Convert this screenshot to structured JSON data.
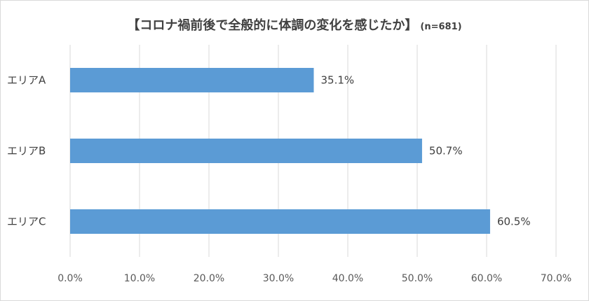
{
  "chart_data": {
    "type": "bar",
    "orientation": "horizontal",
    "title": "【コロナ禍前後で全般的に体調の変化を感じたか】",
    "subtitle": "(n=681)",
    "categories": [
      "エリアA",
      "エリアB",
      "エリアC"
    ],
    "values": [
      35.1,
      50.7,
      60.5
    ],
    "data_labels": [
      "35.1%",
      "50.7%",
      "60.5%"
    ],
    "xlim": [
      0,
      70
    ],
    "x_ticks": [
      "0.0%",
      "10.0%",
      "20.0%",
      "30.0%",
      "40.0%",
      "50.0%",
      "60.0%",
      "70.0%"
    ],
    "grid": true,
    "legend": "none",
    "bar_color": "#5b9bd5",
    "grid_color": "#d9d9d9"
  }
}
